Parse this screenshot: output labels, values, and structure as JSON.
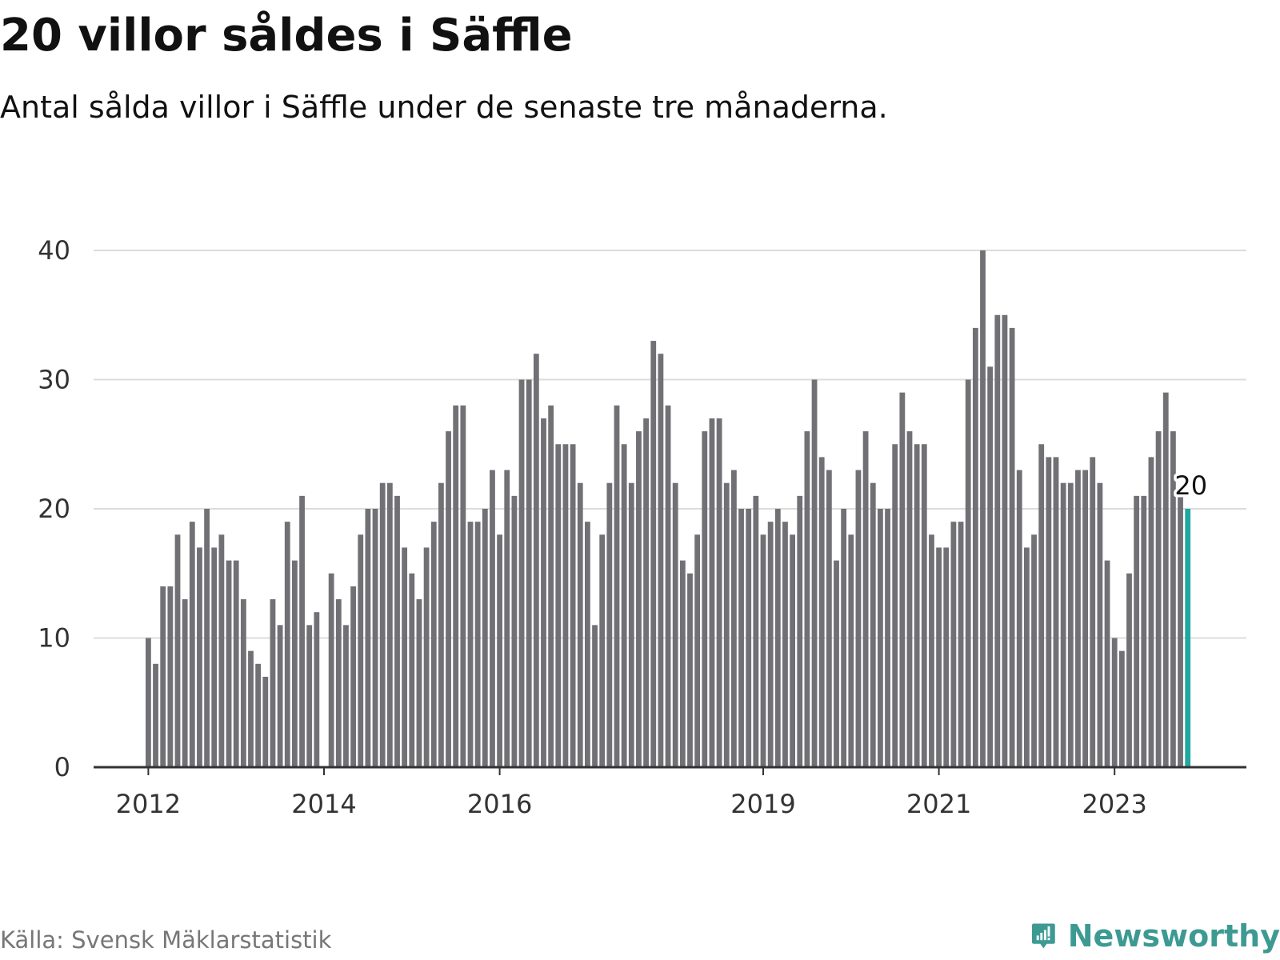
{
  "title": "20 villor såldes i Säffle",
  "subtitle": "Antal sålda villor i Säffle under de senaste tre månaderna.",
  "source": "Källa: Svensk Mäklarstatistik",
  "brand": {
    "name": "Newsworthy",
    "icon": "newsworthy-logo-icon"
  },
  "colors": {
    "bar": "#717175",
    "highlight": "#20a8a0",
    "grid": "#dcdcdc",
    "axis": "#333333",
    "brand": "#3d9a93"
  },
  "chart_data": {
    "type": "bar",
    "title": "20 villor såldes i Säffle",
    "subtitle": "Antal sålda villor i Säffle under de senaste tre månaderna.",
    "xlabel": "",
    "ylabel": "",
    "ylim": [
      0,
      40
    ],
    "yticks": [
      0,
      10,
      20,
      30,
      40
    ],
    "xtick_labels": [
      {
        "label": "2012",
        "index": 0
      },
      {
        "label": "2014",
        "index": 24
      },
      {
        "label": "2016",
        "index": 48
      },
      {
        "label": "2019",
        "index": 84
      },
      {
        "label": "2021",
        "index": 108
      },
      {
        "label": "2023",
        "index": 132
      }
    ],
    "x_start": "2011-12",
    "x_end": "2023-10",
    "grid": true,
    "highlight_index": 142,
    "highlight_label": "20",
    "values": [
      10,
      8,
      14,
      14,
      18,
      13,
      19,
      17,
      20,
      17,
      18,
      16,
      16,
      13,
      9,
      8,
      7,
      13,
      11,
      19,
      16,
      21,
      11,
      12,
      0,
      15,
      13,
      11,
      14,
      18,
      20,
      20,
      22,
      22,
      21,
      17,
      15,
      13,
      17,
      19,
      22,
      26,
      28,
      28,
      19,
      19,
      20,
      23,
      18,
      23,
      21,
      30,
      30,
      32,
      27,
      28,
      25,
      25,
      25,
      22,
      19,
      11,
      18,
      22,
      28,
      25,
      22,
      26,
      27,
      33,
      32,
      28,
      22,
      16,
      15,
      18,
      26,
      27,
      27,
      22,
      23,
      20,
      20,
      21,
      18,
      19,
      20,
      19,
      18,
      21,
      26,
      30,
      24,
      23,
      16,
      20,
      18,
      23,
      26,
      22,
      20,
      20,
      25,
      29,
      26,
      25,
      25,
      18,
      17,
      17,
      19,
      19,
      30,
      34,
      40,
      31,
      35,
      35,
      34,
      23,
      17,
      18,
      25,
      24,
      24,
      22,
      22,
      23,
      23,
      24,
      22,
      16,
      10,
      9,
      15,
      21,
      21,
      24,
      26,
      29,
      26,
      21,
      20
    ]
  }
}
